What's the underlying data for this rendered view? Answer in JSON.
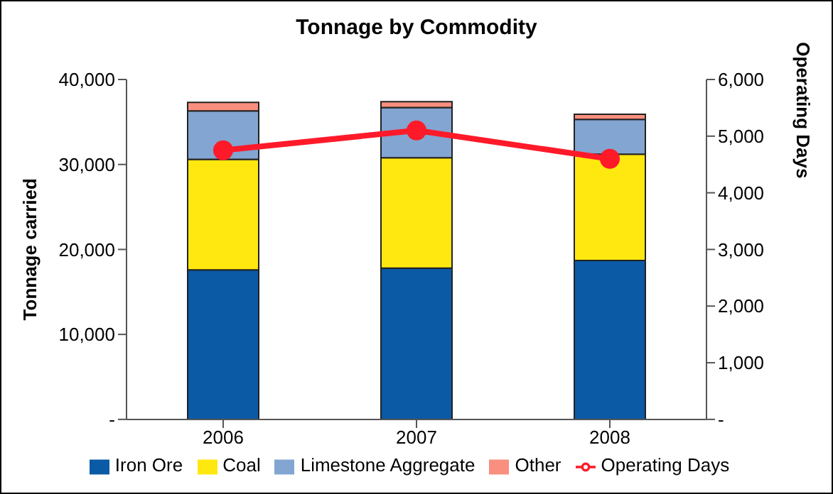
{
  "chart_data": {
    "type": "bar",
    "title": "Tonnage by Commodity",
    "ylabel": "Tonnage carried",
    "y2label": "Operating Days",
    "categories": [
      "2006",
      "2007",
      "2008"
    ],
    "stacked": true,
    "series": [
      {
        "name": "Iron Ore",
        "color": "#0a5aa5",
        "values": [
          17600,
          17800,
          18700
        ]
      },
      {
        "name": "Coal",
        "color": "#ffe80f",
        "values": [
          13000,
          13000,
          12500
        ]
      },
      {
        "name": "Limestone Aggregate",
        "color": "#83a5d1",
        "values": [
          5700,
          5900,
          4100
        ]
      },
      {
        "name": "Other",
        "color": "#f98f7e",
        "values": [
          1000,
          700,
          600
        ]
      },
      {
        "name": "Operating Days",
        "type": "line",
        "axis": "y2",
        "color": "#ff1a2a",
        "marker": "circle",
        "values": [
          4750,
          5100,
          4600
        ]
      }
    ],
    "ylim": [
      0,
      40000
    ],
    "yticks": [
      {
        "value": 0,
        "label": "-"
      },
      {
        "value": 10000,
        "label": "10,000"
      },
      {
        "value": 20000,
        "label": "20,000"
      },
      {
        "value": 30000,
        "label": "30,000"
      },
      {
        "value": 40000,
        "label": "40,000"
      }
    ],
    "y2lim": [
      0,
      6000
    ],
    "y2ticks": [
      {
        "value": 0,
        "label": "-"
      },
      {
        "value": 1000,
        "label": "1,000"
      },
      {
        "value": 2000,
        "label": "2,000"
      },
      {
        "value": 3000,
        "label": "3,000"
      },
      {
        "value": 4000,
        "label": "4,000"
      },
      {
        "value": 5000,
        "label": "5,000"
      },
      {
        "value": 6000,
        "label": "6,000"
      }
    ],
    "grid": false,
    "legend": "bottom"
  }
}
